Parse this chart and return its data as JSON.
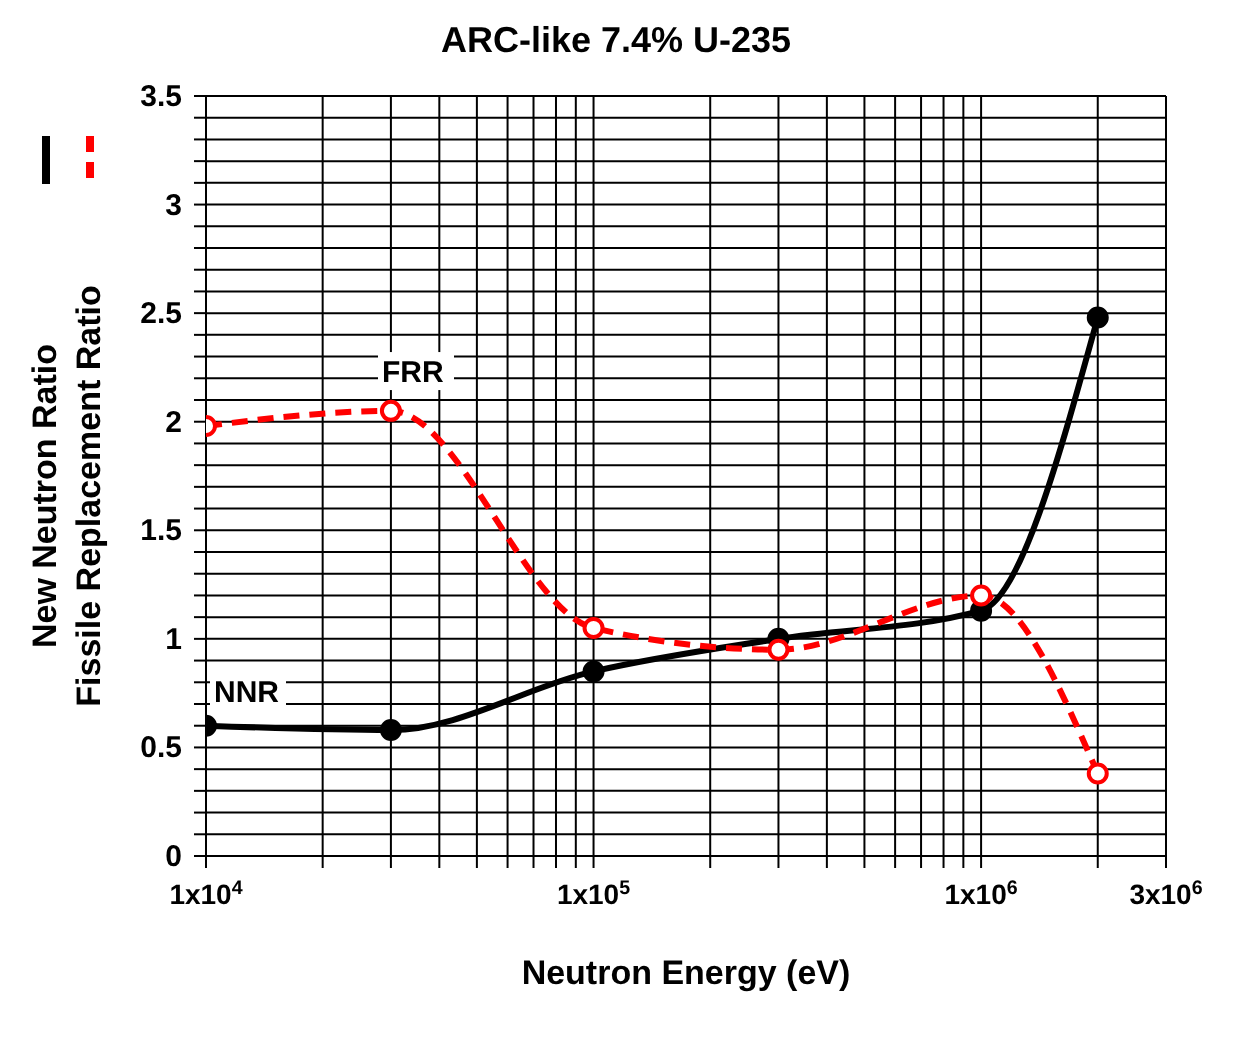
{
  "chart_data": {
    "type": "line",
    "title": "ARC-like  7.4% U-235",
    "xlabel": "Neutron Energy (eV)",
    "ylabel": [
      "New Neutron Ratio",
      "Fissile Replacement Ratio"
    ],
    "log": "x",
    "grid": true,
    "legend": false,
    "marker": "circle",
    "xlim": [
      10000,
      3000000
    ],
    "xticks": [
      {
        "value": 10000,
        "label": "1x10$^{4}$"
      },
      {
        "value": 20000,
        "label": null
      },
      {
        "value": 30000,
        "label": null
      },
      {
        "value": 40000,
        "label": null
      },
      {
        "value": 50000,
        "label": null
      },
      {
        "value": 60000,
        "label": null
      },
      {
        "value": 70000,
        "label": null
      },
      {
        "value": 80000,
        "label": null
      },
      {
        "value": 90000,
        "label": null
      },
      {
        "value": 100000,
        "label": "1x10$^{5}$"
      },
      {
        "value": 200000,
        "label": null
      },
      {
        "value": 300000,
        "label": null
      },
      {
        "value": 400000,
        "label": null
      },
      {
        "value": 500000,
        "label": null
      },
      {
        "value": 600000,
        "label": null
      },
      {
        "value": 700000,
        "label": null
      },
      {
        "value": 800000,
        "label": null
      },
      {
        "value": 900000,
        "label": null
      },
      {
        "value": 1000000,
        "label": "1x10$^{6}$"
      },
      {
        "value": 2000000,
        "label": null
      },
      {
        "value": 3000000,
        "label": "3x10$^{6}$"
      }
    ],
    "ylim": [
      0,
      3.5
    ],
    "yticks": [
      0,
      {
        "value": 0.1,
        "label": null
      },
      {
        "value": 0.2,
        "label": null
      },
      {
        "value": 0.3,
        "label": null
      },
      {
        "value": 0.4,
        "label": null
      },
      0.5,
      {
        "value": 0.6,
        "label": null
      },
      {
        "value": 0.7,
        "label": null
      },
      {
        "value": 0.8,
        "label": null
      },
      {
        "value": 0.9,
        "label": null
      },
      1,
      {
        "value": 1.1,
        "label": null
      },
      {
        "value": 1.2,
        "label": null
      },
      {
        "value": 1.3,
        "label": null
      },
      {
        "value": 1.4,
        "label": null
      },
      1.5,
      {
        "value": 1.6,
        "label": null
      },
      {
        "value": 1.7,
        "label": null
      },
      {
        "value": 1.8,
        "label": null
      },
      {
        "value": 1.9,
        "label": null
      },
      2,
      {
        "value": 2.1,
        "label": null
      },
      {
        "value": 2.2,
        "label": null
      },
      {
        "value": 2.3,
        "label": null
      },
      {
        "value": 2.4,
        "label": null
      },
      2.5,
      {
        "value": 2.6,
        "label": null
      },
      {
        "value": 2.7,
        "label": null
      },
      {
        "value": 2.8,
        "label": null
      },
      {
        "value": 2.9,
        "label": null
      },
      3,
      {
        "value": 3.1,
        "label": null
      },
      {
        "value": 3.2,
        "label": null
      },
      {
        "value": 3.3,
        "label": null
      },
      {
        "value": 3.4,
        "label": null
      },
      3.5
    ],
    "series": [
      {
        "name": "NNR",
        "color": "#000000",
        "line_style": "solid",
        "x": [
          10000,
          30000,
          100000,
          300000,
          1000000,
          2000000
        ],
        "values": [
          0.6,
          0.58,
          0.85,
          1.0,
          1.13,
          2.48
        ]
      },
      {
        "name": "FRR",
        "color": "#ff0000",
        "line_style": "dashed",
        "x": [
          10000,
          30000,
          100000,
          300000,
          1000000,
          2000000
        ],
        "values": [
          1.98,
          2.05,
          1.05,
          0.95,
          1.2,
          0.38
        ]
      }
    ]
  }
}
